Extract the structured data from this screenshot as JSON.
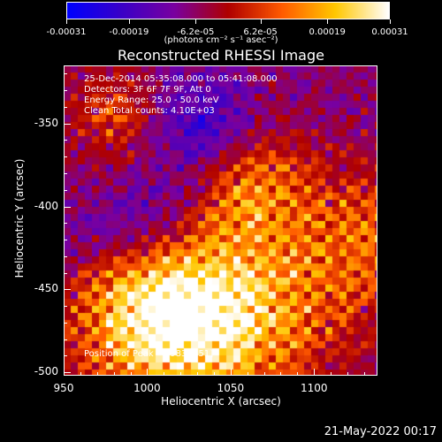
{
  "colorbar": {
    "unit_text": "(photons cm⁻² s⁻¹ asec⁻²)",
    "ticks": [
      {
        "label": "-0.00031",
        "value": -0.00031
      },
      {
        "label": "-0.00019",
        "value": -0.00019
      },
      {
        "label": "-6.2e-05",
        "value": -6.2e-05
      },
      {
        "label": "6.2e-05",
        "value": 6.2e-05
      },
      {
        "label": "0.00019",
        "value": 0.00019
      },
      {
        "label": "0.00031",
        "value": 0.00031
      }
    ],
    "min": -0.00031,
    "max": 0.00031,
    "colors": [
      "#0000ff",
      "#3a00c8",
      "#7a00a0",
      "#b00000",
      "#ff5a00",
      "#ffc800",
      "#ffffff"
    ]
  },
  "chart_data": {
    "type": "heatmap",
    "title": "Reconstructed RHESSI Image",
    "xlabel": "Heliocentric X (arcsec)",
    "ylabel": "Heliocentric Y (arcsec)",
    "xlim": [
      950,
      1138
    ],
    "ylim": [
      -502,
      -315
    ],
    "x_ticks": [
      {
        "label": "950",
        "value": 950
      },
      {
        "label": "1000",
        "value": 1000
      },
      {
        "label": "1050",
        "value": 1050
      },
      {
        "label": "1100",
        "value": 1100
      }
    ],
    "y_ticks": [
      {
        "label": "-350",
        "value": -350
      },
      {
        "label": "-400",
        "value": -400
      },
      {
        "label": "-450",
        "value": -450
      },
      {
        "label": "-500",
        "value": -500
      }
    ],
    "annotations": {
      "time_range": "25-Dec-2014 05:35:08.000 to 05:41:08.000",
      "detectors": "Detectors: 3F 6F 7F 9F, Att 0",
      "energy_range": "Energy Range: 25.0 - 50.0 keV",
      "method_counts": "Clean     Total counts: 4.10E+03",
      "peak": "Position of Peak = [983,-451]"
    },
    "peak_position": [
      983,
      -451
    ],
    "grid": false
  },
  "footer": {
    "date": "21-May-2022 00:17"
  }
}
